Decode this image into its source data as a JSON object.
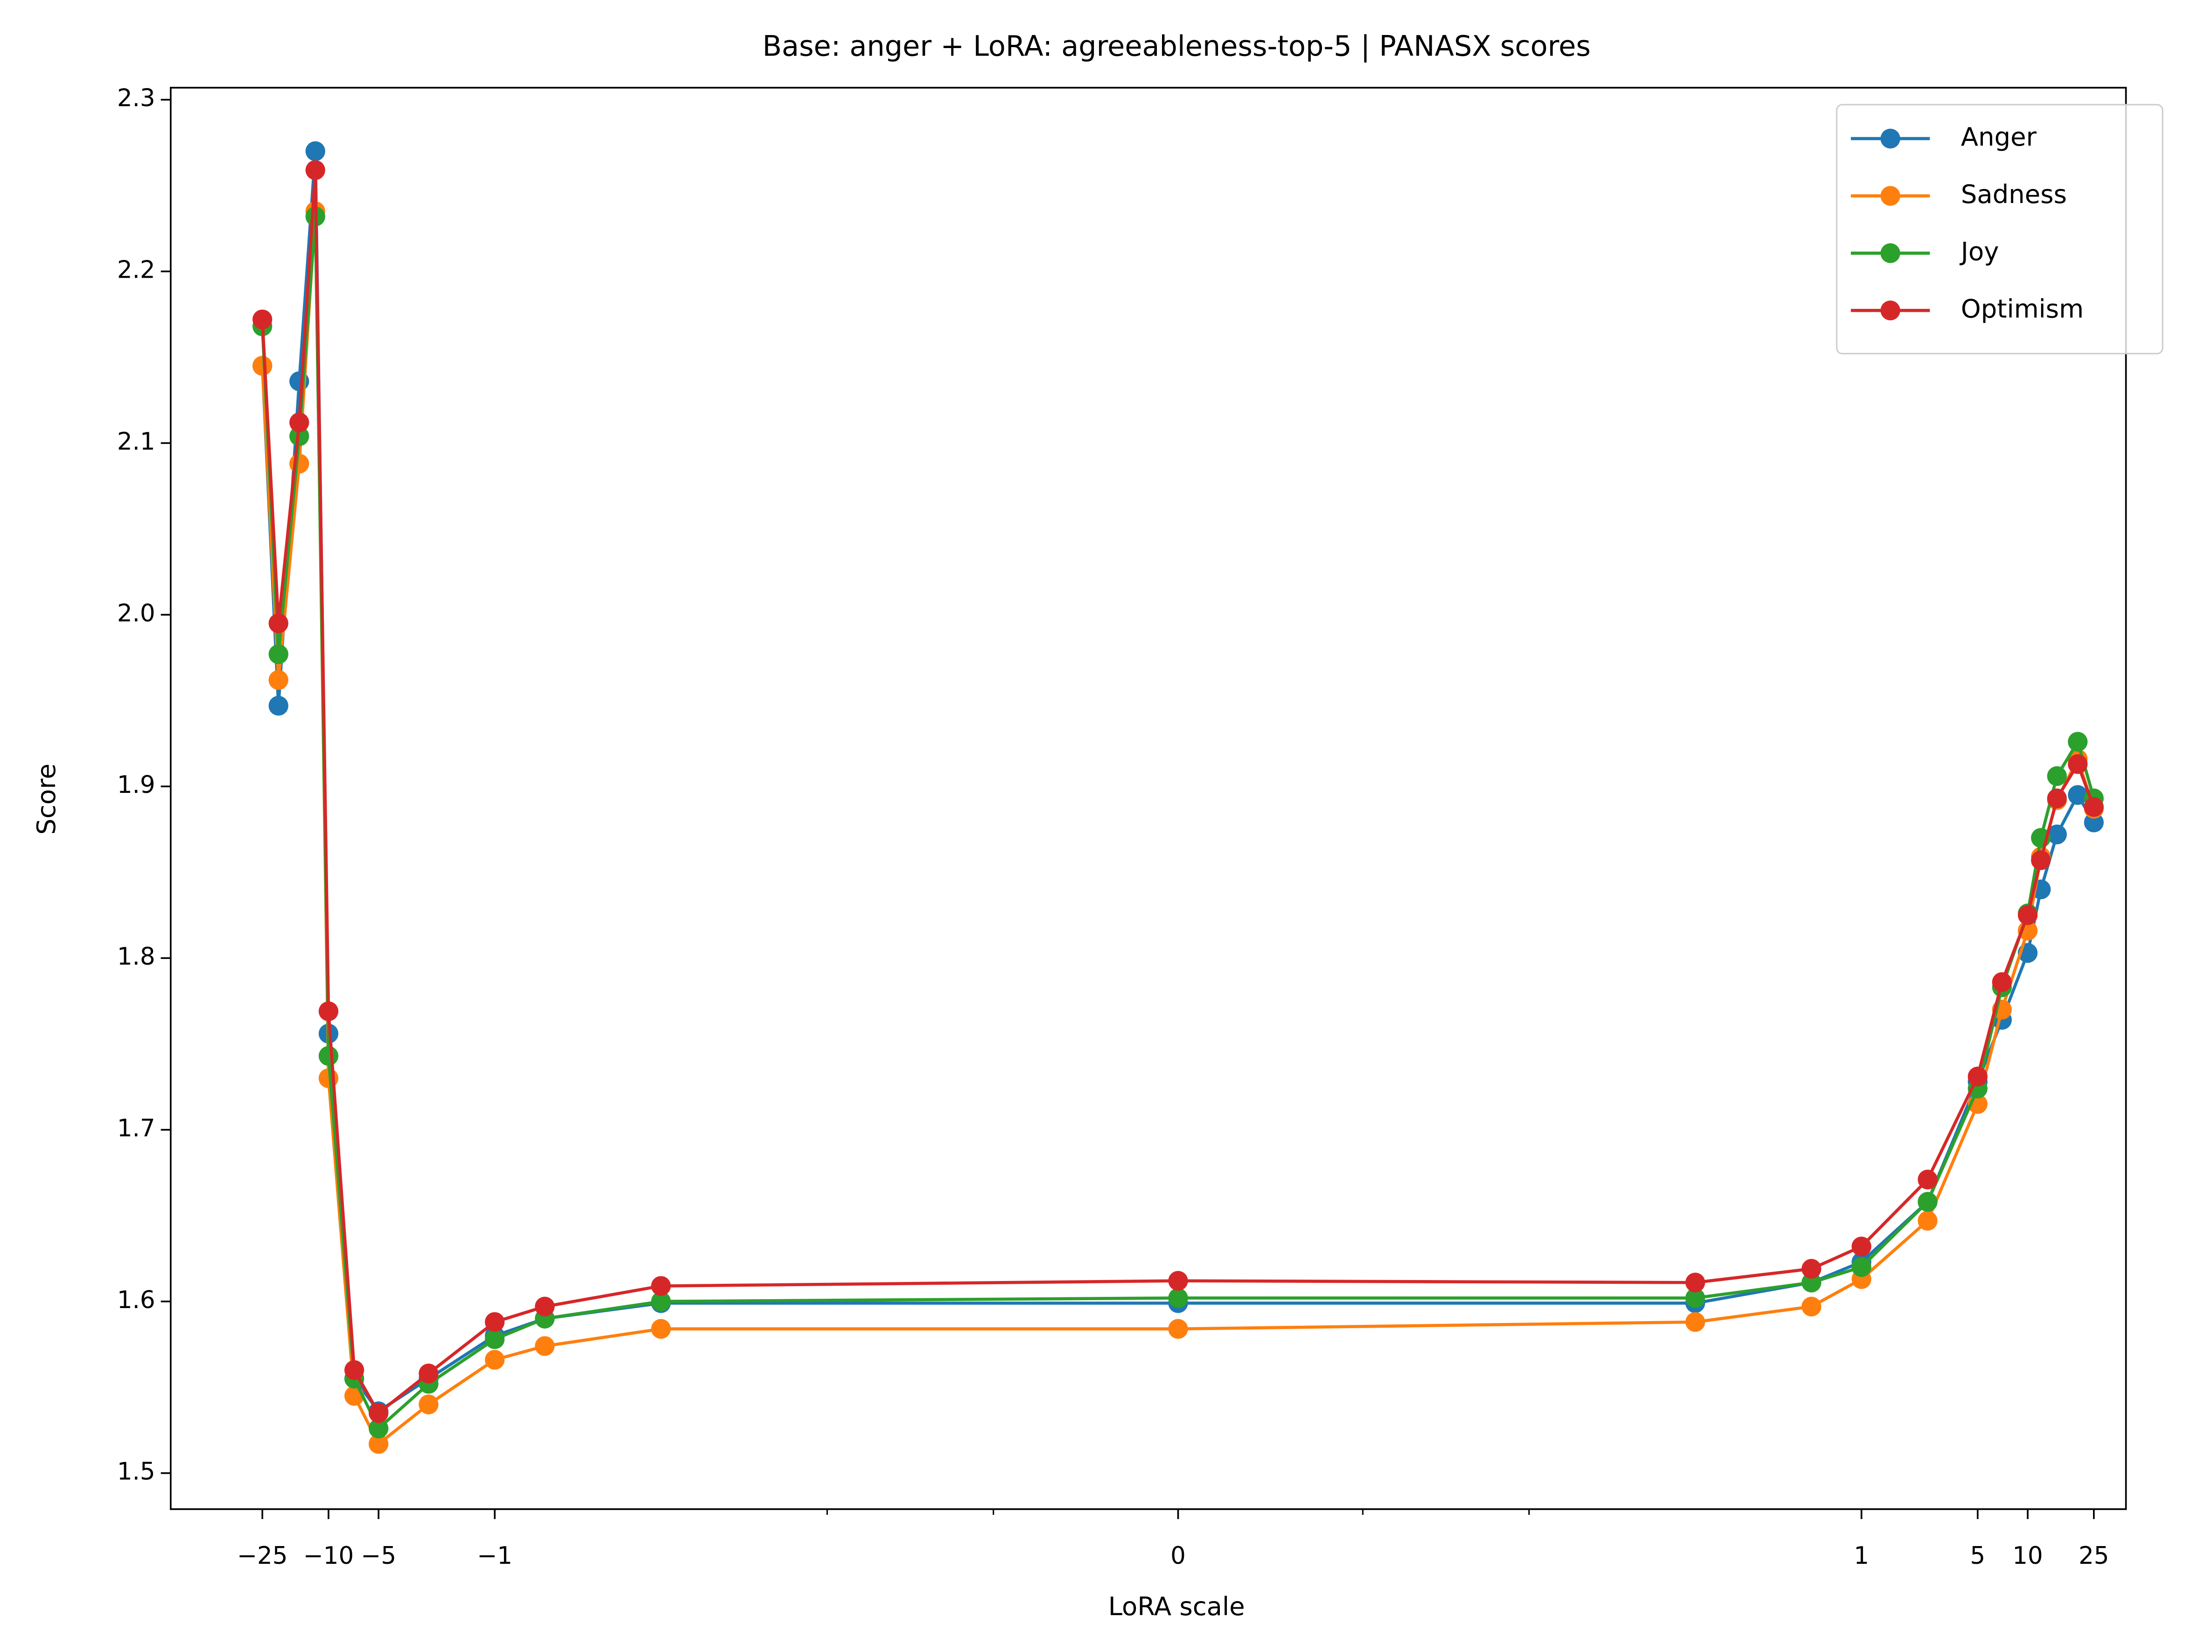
{
  "chart_data": {
    "type": "line",
    "title": "Base: anger + LoRA: agreeableness-top-5 | PANASX scores",
    "xlabel": "LoRA scale",
    "ylabel": "Score",
    "xscale": {
      "type": "symlog",
      "linthresh": 0.001,
      "linscale": 1
    },
    "x": [
      -25,
      -20,
      -15,
      -12,
      -10,
      -7,
      -5,
      -2.5,
      -1,
      -0.5,
      -0.1,
      0,
      0.1,
      0.5,
      1,
      2.5,
      5,
      7,
      10,
      12,
      15,
      20,
      25
    ],
    "series": [
      {
        "name": "Anger",
        "color": "#1f77b4",
        "values": [
          2.145,
          1.947,
          2.136,
          2.27,
          1.756,
          1.555,
          1.536,
          1.555,
          1.58,
          1.59,
          1.599,
          1.599,
          1.599,
          1.611,
          1.623,
          1.658,
          1.728,
          1.764,
          1.803,
          1.84,
          1.872,
          1.895,
          1.879
        ]
      },
      {
        "name": "Sadness",
        "color": "#ff7f0e",
        "values": [
          2.145,
          1.962,
          2.088,
          2.235,
          1.73,
          1.545,
          1.517,
          1.54,
          1.566,
          1.574,
          1.584,
          1.584,
          1.588,
          1.597,
          1.613,
          1.647,
          1.715,
          1.77,
          1.816,
          1.859,
          1.892,
          1.916,
          1.887
        ]
      },
      {
        "name": "Joy",
        "color": "#2ca02c",
        "values": [
          2.168,
          1.977,
          2.104,
          2.232,
          1.743,
          1.555,
          1.526,
          1.552,
          1.578,
          1.59,
          1.6,
          1.602,
          1.602,
          1.611,
          1.62,
          1.658,
          1.724,
          1.783,
          1.826,
          1.87,
          1.906,
          1.926,
          1.893
        ]
      },
      {
        "name": "Optimism",
        "color": "#d62728",
        "values": [
          2.172,
          1.995,
          2.112,
          2.259,
          1.769,
          1.56,
          1.535,
          1.558,
          1.588,
          1.597,
          1.609,
          1.612,
          1.611,
          1.619,
          1.632,
          1.671,
          1.731,
          1.786,
          1.825,
          1.857,
          1.893,
          1.913,
          1.888
        ]
      }
    ],
    "xlim": [
      -89,
      39
    ],
    "xticks": [
      {
        "value": -25,
        "label": "−25"
      },
      {
        "value": -10,
        "label": "−10"
      },
      {
        "value": -5,
        "label": "−5"
      },
      {
        "value": -1,
        "label": "−1"
      },
      0,
      1,
      5,
      10,
      25
    ],
    "xminorticks": [
      -0.01,
      -0.001,
      0.001,
      0.01
    ],
    "ylim": [
      1.479,
      2.307
    ],
    "yticks": [
      1.5,
      1.6,
      1.7,
      1.8,
      1.9,
      {
        "value": 2,
        "label": "2.0"
      },
      2.1,
      2.2,
      2.3
    ],
    "legend": "upper right"
  }
}
